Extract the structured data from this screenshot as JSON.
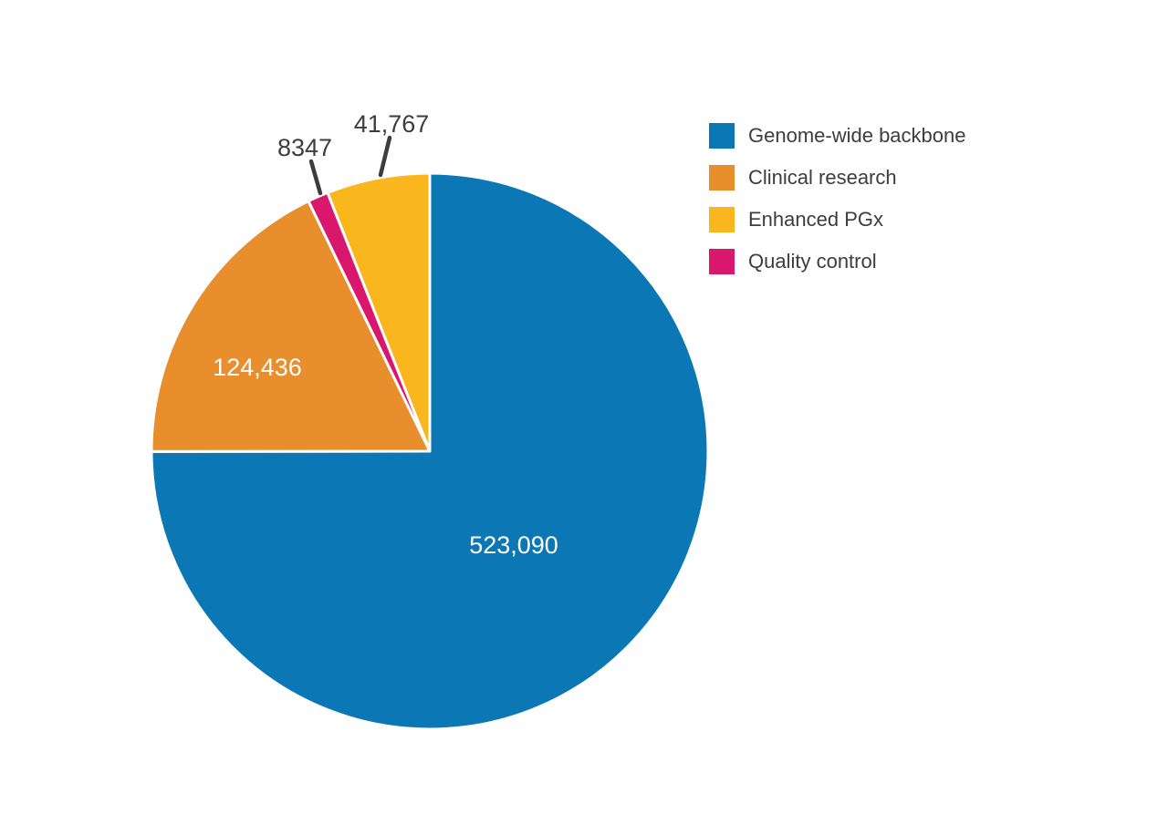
{
  "page": {
    "background": "#ffffff"
  },
  "colors": {
    "blue": "#0b77b5",
    "orange": "#e98e2d",
    "yellow": "#fab71d",
    "pink": "#d9176d",
    "dark_text": "#3d3d3d",
    "light_text": "#ffffff"
  },
  "chart_data": {
    "type": "pie",
    "total": 697640,
    "direction": "clockwise",
    "start_angle_deg": 0,
    "legend_position": "top-right",
    "slices": [
      {
        "label": "Genome-wide backbone",
        "value": 523090,
        "value_label": "523,090",
        "color": "#0b77b5",
        "label_placement": "inside"
      },
      {
        "label": "Clinical research",
        "value": 124436,
        "value_label": "124,436",
        "color": "#e98e2d",
        "label_placement": "inside"
      },
      {
        "label": "Quality control",
        "value": 8347,
        "value_label": "8347",
        "color": "#d9176d",
        "label_placement": "outside"
      },
      {
        "label": "Enhanced PGx",
        "value": 41767,
        "value_label": "41,767",
        "color": "#fab71d",
        "label_placement": "outside"
      }
    ]
  },
  "legend": {
    "items": [
      {
        "label": "Genome-wide backbone",
        "color": "#0b77b5"
      },
      {
        "label": "Clinical research",
        "color": "#e98e2d"
      },
      {
        "label": "Enhanced PGx",
        "color": "#fab71d"
      },
      {
        "label": "Quality control",
        "color": "#d9176d"
      }
    ]
  }
}
